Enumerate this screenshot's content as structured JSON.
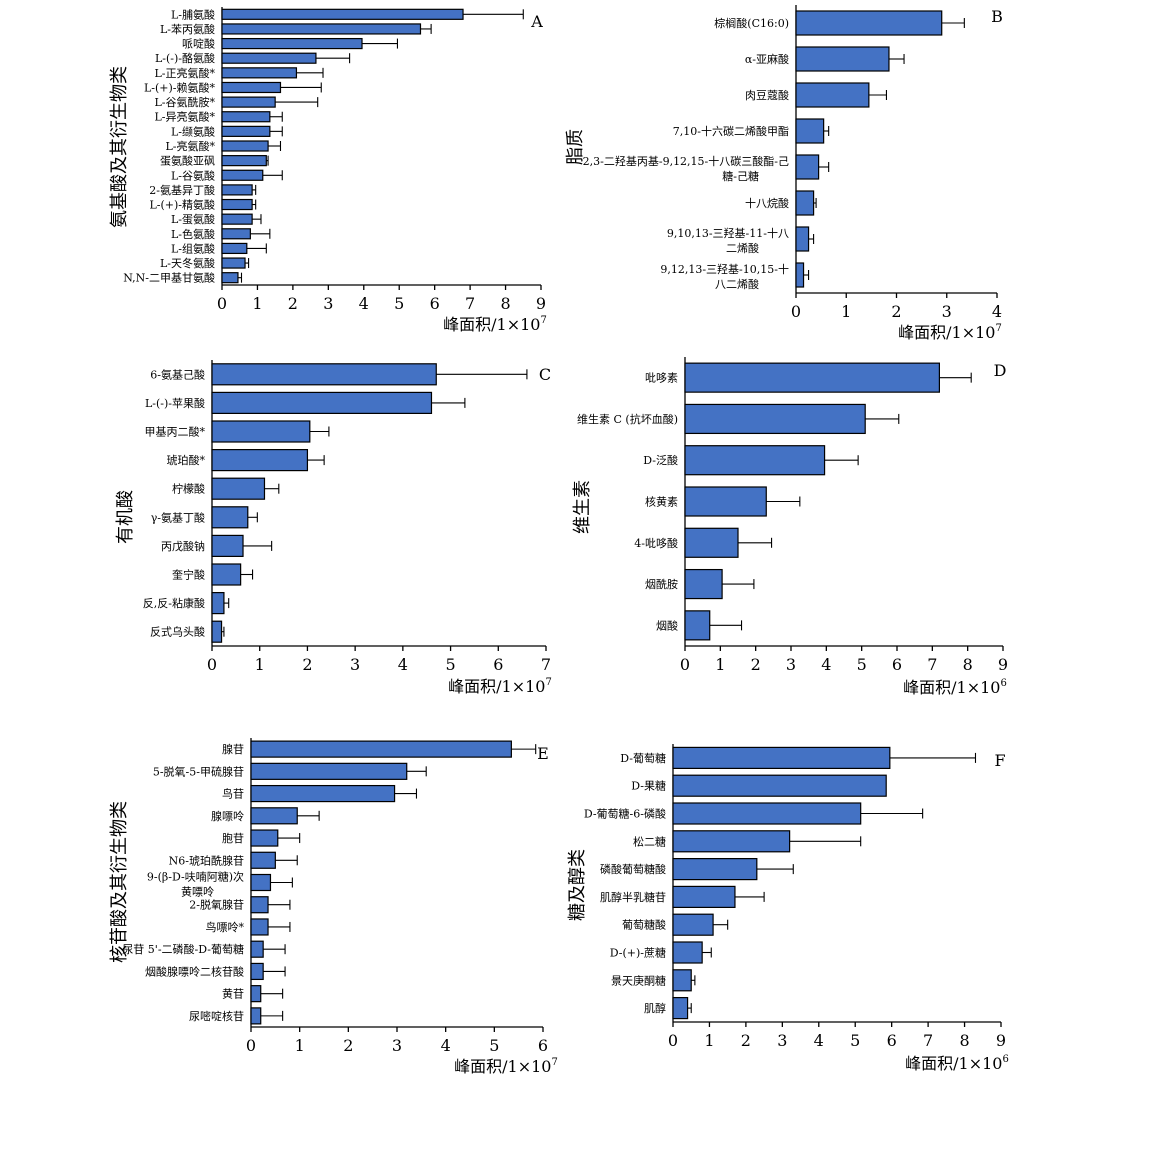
{
  "chart_data": [
    {
      "panel": "A",
      "type": "bar",
      "orientation": "horizontal",
      "ylabel": "氨基酸及其衍生物类",
      "xlabel": "峰面积/1×10",
      "xlabel_exp": "7",
      "xlim": [
        0,
        9
      ],
      "xticks": [
        0,
        1,
        2,
        3,
        4,
        5,
        6,
        7,
        8,
        9
      ],
      "categories": [
        "L-脯氨酸",
        "L-苯丙氨酸",
        "哌啶酸",
        "L-(-)-酪氨酸",
        "L-正亮氨酸*",
        "L-(+)-赖氨酸*",
        "L-谷氨酰胺*",
        "L-异亮氨酸*",
        "L-缬氨酸",
        "L-亮氨酸*",
        "蛋氨酸亚砜",
        "L-谷氨酸",
        "2-氨基异丁酸",
        "L-(+)-精氨酸",
        "L-蛋氨酸",
        "L-色氨酸",
        "L-组氨酸",
        "L-天冬氨酸",
        "N,N-二甲基甘氨酸"
      ],
      "values": [
        6.8,
        5.6,
        3.95,
        2.65,
        2.1,
        1.65,
        1.5,
        1.35,
        1.35,
        1.3,
        1.25,
        1.15,
        0.85,
        0.85,
        0.85,
        0.8,
        0.7,
        0.65,
        0.45
      ],
      "errors": [
        1.7,
        0.3,
        1.0,
        0.95,
        0.75,
        1.15,
        1.2,
        0.35,
        0.35,
        0.35,
        0.05,
        0.55,
        0.1,
        0.1,
        0.25,
        0.55,
        0.55,
        0.1,
        0.1
      ]
    },
    {
      "panel": "B",
      "type": "bar",
      "orientation": "horizontal",
      "ylabel": "脂质",
      "xlabel": "峰面积/1×10",
      "xlabel_exp": "7",
      "xlim": [
        0,
        4
      ],
      "xticks": [
        0,
        1,
        2,
        3,
        4
      ],
      "categories": [
        "棕榈酸(C16:0)",
        "α-亚麻酸",
        "肉豆蔻酸",
        "7,10-十六碳二烯酸甲酯",
        "2,3-二羟基丙基-9,12,15-十八碳三酸酯-己糖-己糖",
        "十八烷酸",
        "9,10,13-三羟基-11-十八二烯酸",
        "9,12,13-三羟基-10,15-十八二烯酸"
      ],
      "values": [
        2.9,
        1.85,
        1.45,
        0.55,
        0.45,
        0.35,
        0.25,
        0.15
      ],
      "errors": [
        0.45,
        0.3,
        0.35,
        0.1,
        0.2,
        0.05,
        0.1,
        0.1
      ]
    },
    {
      "panel": "C",
      "type": "bar",
      "orientation": "horizontal",
      "ylabel": "有机酸",
      "xlabel": "峰面积/1×10",
      "xlabel_exp": "7",
      "xlim": [
        0,
        7
      ],
      "xticks": [
        0,
        1,
        2,
        3,
        4,
        5,
        6,
        7
      ],
      "categories": [
        "6-氨基己酸",
        "L-(-)-苹果酸",
        "甲基丙二酸*",
        "琥珀酸*",
        "柠檬酸",
        "γ-氨基丁酸",
        "丙戊酸钠",
        "奎宁酸",
        "反,反-粘康酸",
        "反式乌头酸"
      ],
      "values": [
        4.7,
        4.6,
        2.05,
        2.0,
        1.1,
        0.75,
        0.65,
        0.6,
        0.25,
        0.2
      ],
      "errors": [
        1.9,
        0.7,
        0.4,
        0.35,
        0.3,
        0.2,
        0.6,
        0.25,
        0.1,
        0.05
      ]
    },
    {
      "panel": "D",
      "type": "bar",
      "orientation": "horizontal",
      "ylabel": "维生素",
      "xlabel": "峰面积/1×10",
      "xlabel_exp": "6",
      "xlim": [
        0,
        9
      ],
      "xticks": [
        0,
        1,
        2,
        3,
        4,
        5,
        6,
        7,
        8,
        9
      ],
      "categories": [
        "吡哆素",
        "维生素 C (抗坏血酸)",
        "D-泛酸",
        "核黄素",
        "4-吡哆酸",
        "烟酰胺",
        "烟酸"
      ],
      "values": [
        7.2,
        5.1,
        3.95,
        2.3,
        1.5,
        1.05,
        0.7
      ],
      "errors": [
        0.9,
        0.95,
        0.95,
        0.95,
        0.95,
        0.9,
        0.9
      ]
    },
    {
      "panel": "E",
      "type": "bar",
      "orientation": "horizontal",
      "ylabel": "核苷酸及其衍生物类",
      "xlabel": "峰面积/1×10",
      "xlabel_exp": "7",
      "xlim": [
        0,
        6
      ],
      "xticks": [
        0,
        1,
        2,
        3,
        4,
        5,
        6
      ],
      "categories": [
        "腺苷",
        "5-脱氧-5-甲硫腺苷",
        "鸟苷",
        "腺嘌呤",
        "胞苷",
        "N6-琥珀酰腺苷",
        "9-(β-D-呋喃阿糖)次黄嘌呤",
        "2-脱氧腺苷",
        "鸟嘌呤*",
        "尿苷 5'-二磷酸-D-葡萄糖",
        "烟酸腺嘌呤二核苷酸",
        "黄苷",
        "尿嘧啶核苷"
      ],
      "values": [
        5.35,
        3.2,
        2.95,
        0.95,
        0.55,
        0.5,
        0.4,
        0.35,
        0.35,
        0.25,
        0.25,
        0.2,
        0.2
      ],
      "errors": [
        0.5,
        0.4,
        0.45,
        0.45,
        0.45,
        0.45,
        0.45,
        0.45,
        0.45,
        0.45,
        0.45,
        0.45,
        0.45
      ]
    },
    {
      "panel": "F",
      "type": "bar",
      "orientation": "horizontal",
      "ylabel": "糖及醇类",
      "xlabel": "峰面积/1×10",
      "xlabel_exp": "6",
      "xlim": [
        0,
        9
      ],
      "xticks": [
        0,
        1,
        2,
        3,
        4,
        5,
        6,
        7,
        8,
        9
      ],
      "categories": [
        "D-葡萄糖",
        "D-果糖",
        "D-葡萄糖-6-磷酸",
        "松二糖",
        "磷酸葡萄糖酸",
        "肌醇半乳糖苷",
        "葡萄糖酸",
        "D-(+)-蔗糖",
        "景天庚酮糖",
        "肌醇"
      ],
      "values": [
        5.95,
        5.85,
        5.15,
        3.2,
        2.3,
        1.7,
        1.1,
        0.8,
        0.5,
        0.4
      ],
      "errors": [
        2.35,
        0.0,
        1.7,
        1.95,
        1.0,
        0.8,
        0.4,
        0.25,
        0.1,
        0.1
      ]
    }
  ]
}
